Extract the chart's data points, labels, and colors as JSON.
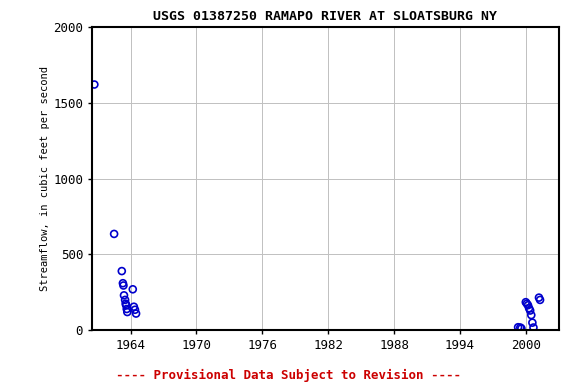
{
  "title": "USGS 01387250 RAMAPO RIVER AT SLOATSBURG NY",
  "ylabel": "Streamflow, in cubic feet per second",
  "xlim": [
    1960.5,
    2003
  ],
  "ylim": [
    0,
    2000
  ],
  "xticks": [
    1964,
    1970,
    1976,
    1982,
    1988,
    1994,
    2000
  ],
  "yticks": [
    0,
    500,
    1000,
    1500,
    2000
  ],
  "background_color": "#ffffff",
  "grid_color": "#c0c0c0",
  "marker_color": "#0000cc",
  "marker_size": 5,
  "marker_linewidth": 1.2,
  "footnote": "---- Provisional Data Subject to Revision ----",
  "footnote_color": "#cc0000",
  "x_data": [
    1960.7,
    1962.5,
    1963.2,
    1963.3,
    1963.35,
    1963.4,
    1963.5,
    1963.55,
    1963.6,
    1963.65,
    1963.7,
    1964.2,
    1964.3,
    1964.4,
    1964.5,
    1999.3,
    1999.5,
    1999.6,
    2000.0,
    2000.1,
    2000.2,
    2000.3,
    2000.4,
    2000.5,
    2000.6,
    2000.7,
    2001.2,
    2001.3
  ],
  "y_data": [
    1620,
    635,
    390,
    310,
    295,
    230,
    200,
    175,
    165,
    140,
    120,
    270,
    155,
    135,
    110,
    20,
    18,
    12,
    185,
    175,
    165,
    145,
    130,
    100,
    50,
    18,
    215,
    200
  ]
}
